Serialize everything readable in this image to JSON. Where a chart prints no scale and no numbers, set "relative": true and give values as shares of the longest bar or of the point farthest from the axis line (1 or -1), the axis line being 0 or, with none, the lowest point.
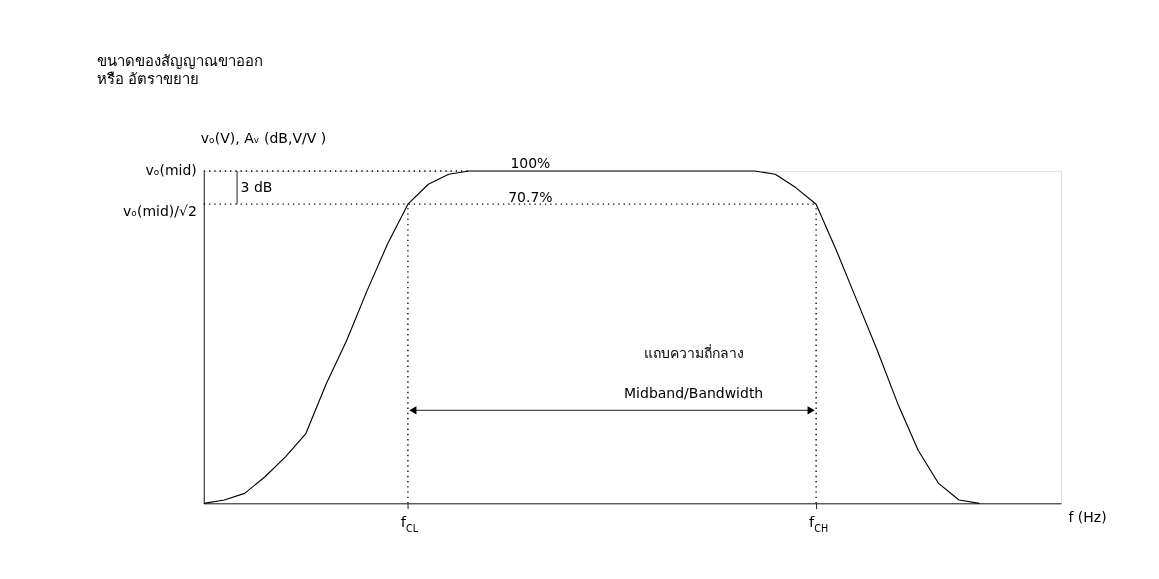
{
  "chart_data": {
    "type": "line",
    "relative": true,
    "title": "ขนาดของสัญญาณขาออก",
    "subtitle": "หรือ อัตราขยาย",
    "ylabel": "vₒ(V), Aᵥ (dB,V/V )",
    "xlabel": "f (Hz)",
    "categories": [
      null,
      null,
      null,
      null,
      null,
      null,
      null,
      null,
      null,
      null,
      "f$_{CL}$",
      null,
      null,
      null,
      null,
      null,
      null,
      null,
      null,
      null,
      null,
      null,
      null,
      null,
      null,
      null,
      null,
      null,
      null,
      null,
      "f$_{CH}$",
      null,
      null,
      null,
      null,
      null,
      null,
      null,
      null,
      null,
      null,
      null,
      null
    ],
    "series": [
      {
        "color": "#000000",
        "values": [
          0,
          0.01,
          0.03,
          0.08,
          0.14,
          0.21,
          0.36,
          0.49,
          0.64,
          0.78,
          0.9,
          0.96,
          0.99,
          1,
          1,
          1,
          1,
          1,
          1,
          1,
          1,
          1,
          1,
          1,
          1,
          1,
          1,
          1,
          0.99,
          0.95,
          0.9,
          0.76,
          0.61,
          0.46,
          0.3,
          0.16,
          0.06,
          0.01,
          0,
          null,
          null,
          null,
          null
        ]
      }
    ],
    "ref_lines": [
      {
        "axis": "y",
        "value": 1,
        "line_style": "dotted"
      },
      {
        "axis": "y",
        "value": 0.9,
        "line_style": "dotted"
      },
      {
        "axis": "x",
        "value": "f$_{CL}$",
        "line_style": "dotted"
      },
      {
        "axis": "x",
        "value": "f$_{CH}$",
        "line_style": "dotted"
      }
    ],
    "annotations": [
      "100%",
      "70.7%",
      "vₒ(mid)",
      "vₒ(mid)/√2",
      "3 dB",
      "แถบความถี่กลาง",
      "Midband/Bandwidth"
    ],
    "grid": false,
    "marker": "none",
    "line_style": "solid"
  }
}
